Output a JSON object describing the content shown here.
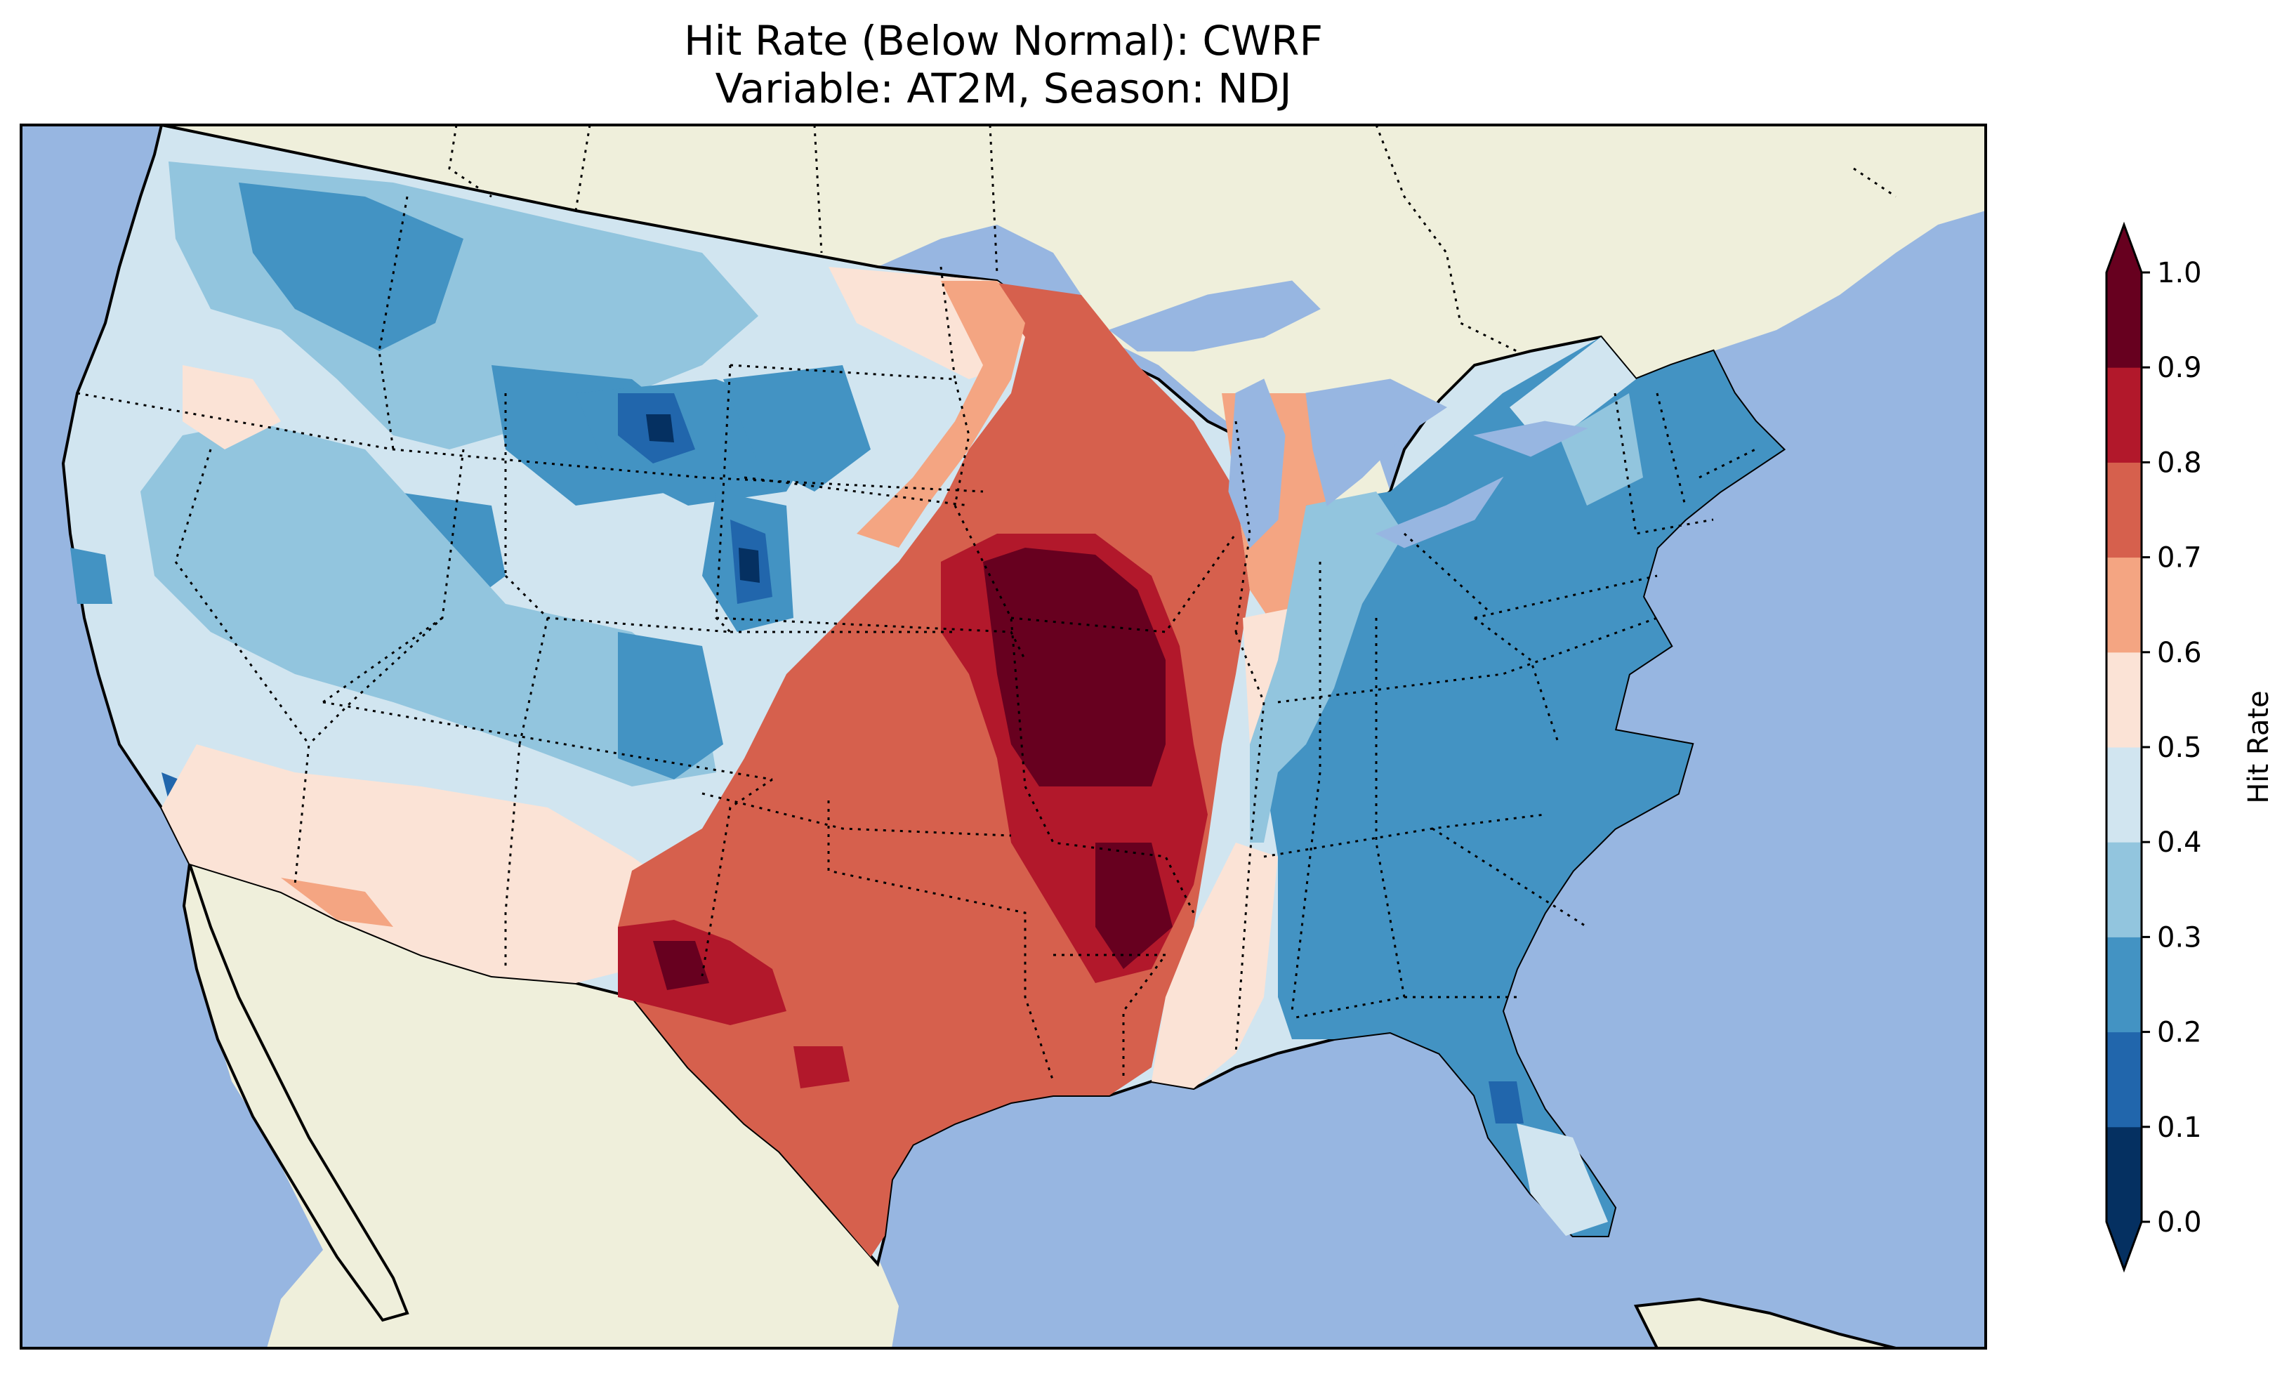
{
  "title": {
    "line1": "Hit Rate (Below Normal): CWRF",
    "line2": "Variable: AT2M, Season: NDJ"
  },
  "map": {
    "region": "Contiguous United States",
    "ocean_color": "#97b6e1",
    "land_color": "#efefdb",
    "border_style": "dotted"
  },
  "colorbar": {
    "label": "Hit Rate",
    "ticks": [
      "0.0",
      "0.1",
      "0.2",
      "0.3",
      "0.4",
      "0.5",
      "0.6",
      "0.7",
      "0.8",
      "0.9",
      "1.0"
    ],
    "colors": [
      "#053061",
      "#2166ac",
      "#4393c3",
      "#92c5de",
      "#d1e5f0",
      "#fbe3d6",
      "#f4a582",
      "#d6604d",
      "#b2182b",
      "#67001f"
    ],
    "extend": "both"
  }
}
